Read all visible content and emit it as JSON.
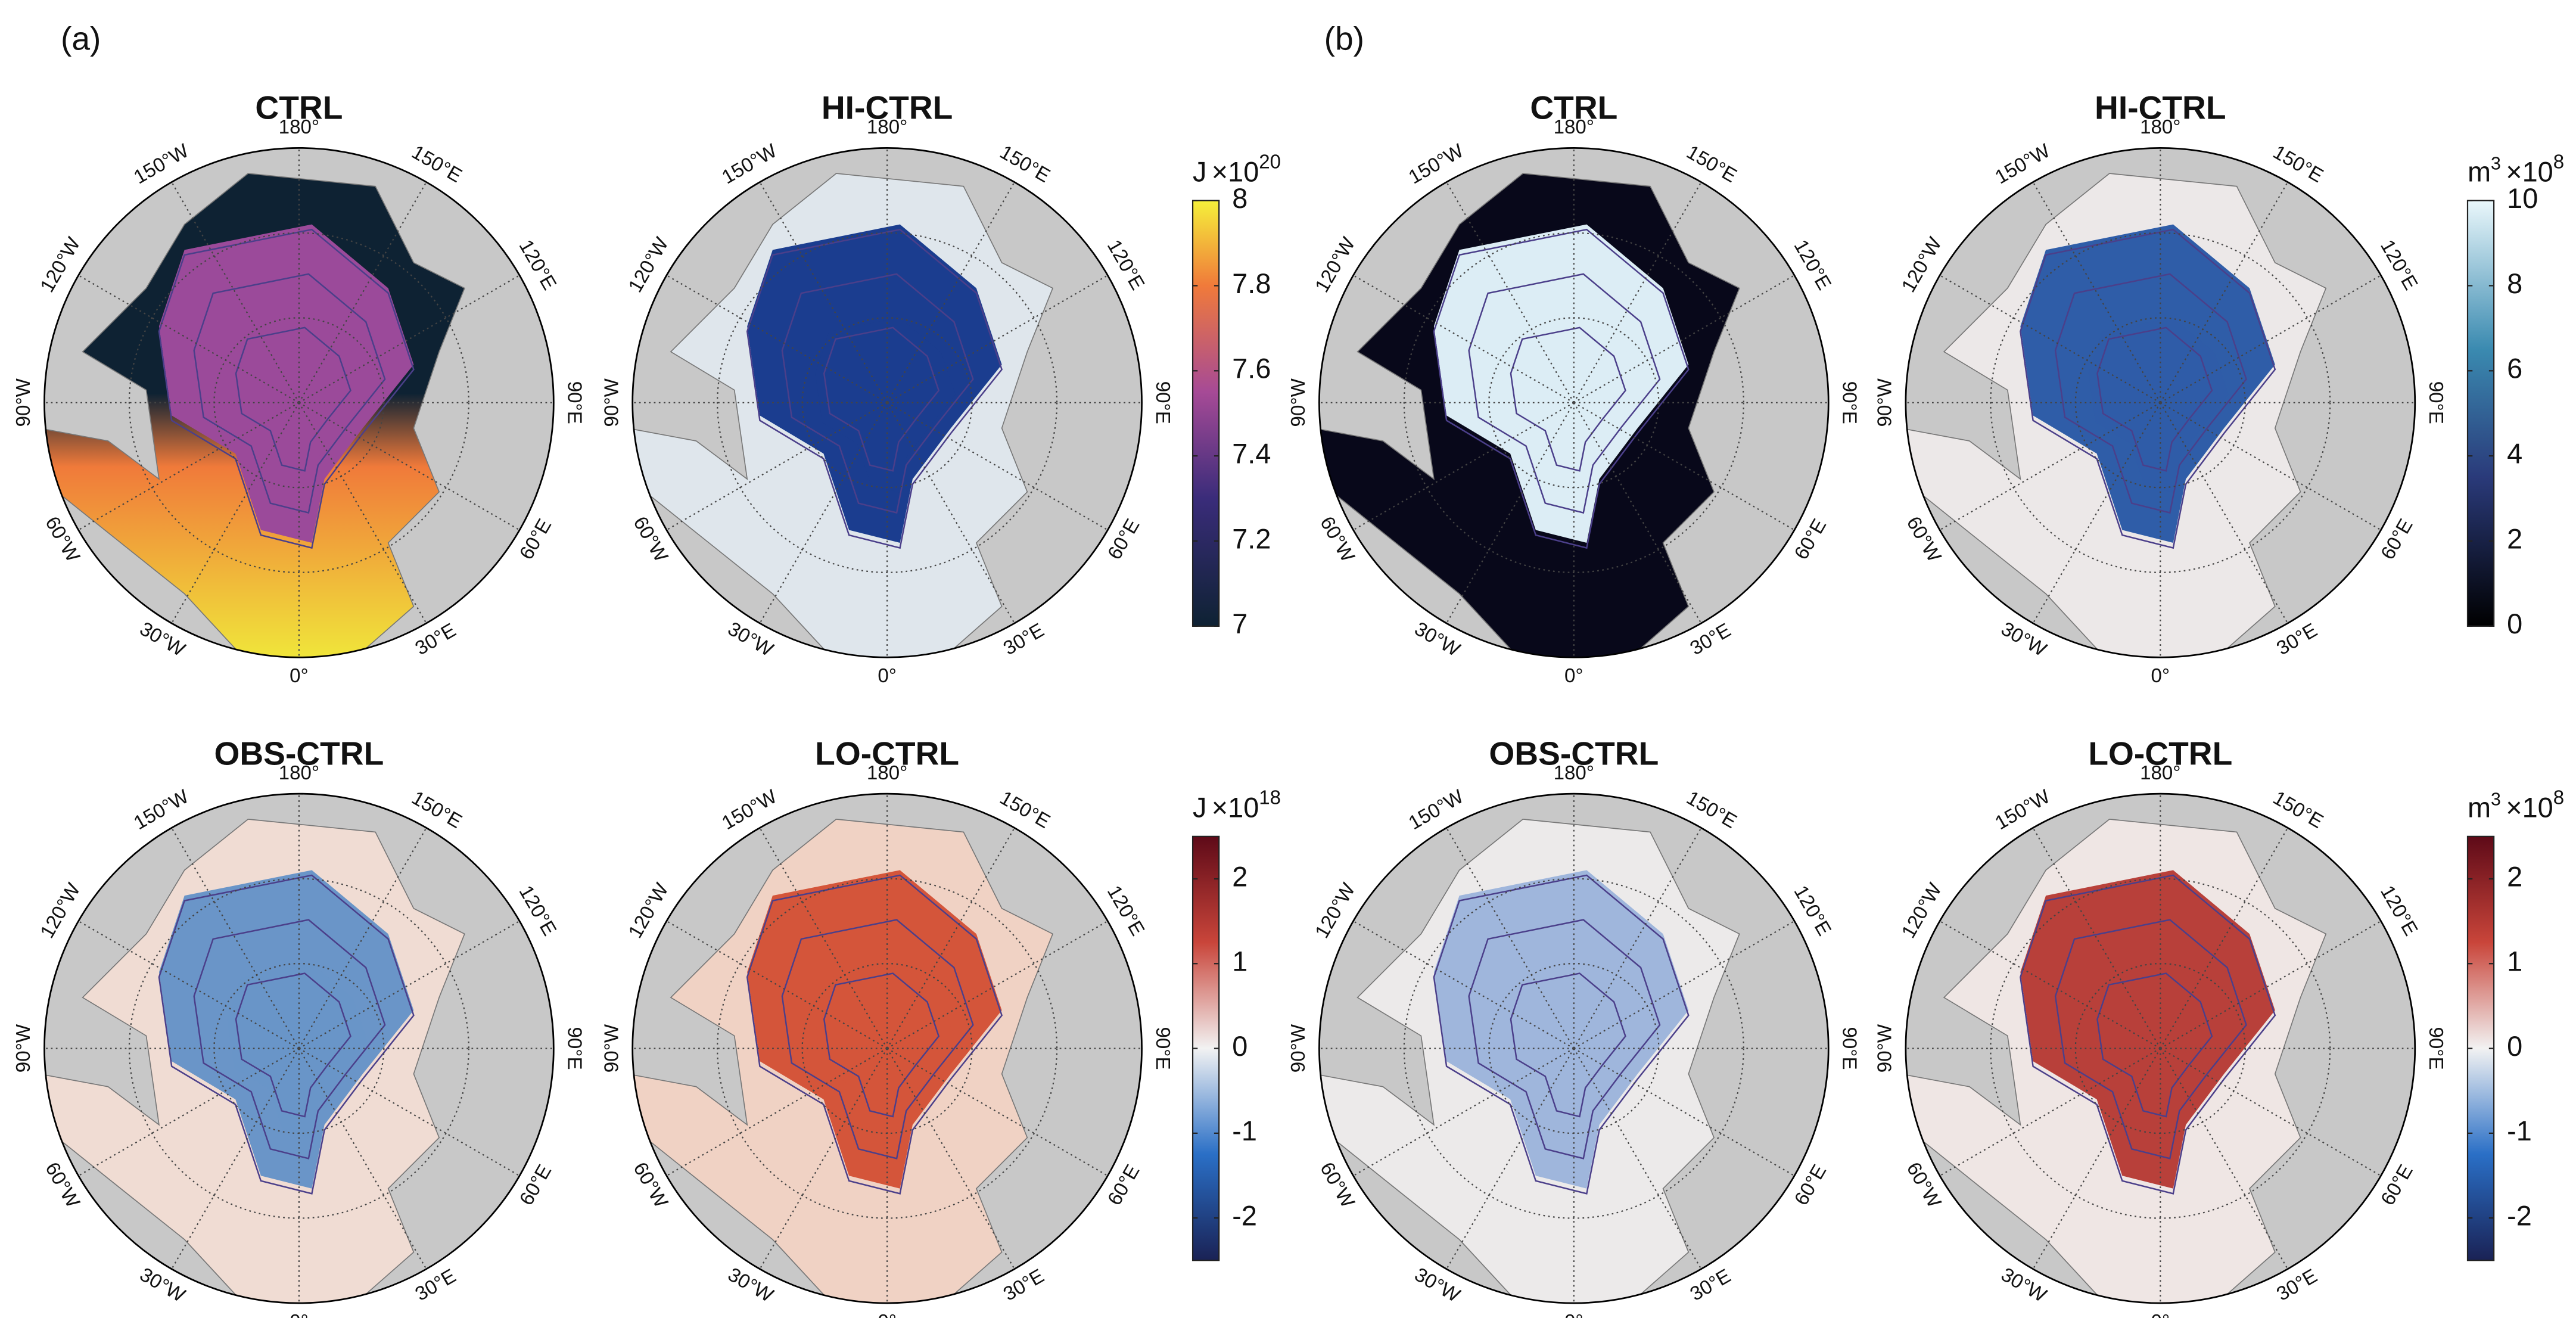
{
  "panels": [
    {
      "label": "(a)",
      "maps": [
        {
          "title": "CTRL"
        },
        {
          "title": "HI-CTRL"
        },
        {
          "title": "OBS-CTRL"
        },
        {
          "title": "LO-CTRL"
        }
      ],
      "colorbars": [
        {
          "unit": "J",
          "multiplier": "×10",
          "exponent": "20",
          "lim": [
            7,
            8
          ],
          "ticks": [
            7,
            7.2,
            7.4,
            7.6,
            7.8,
            8
          ]
        },
        {
          "unit": "J",
          "multiplier": "×10",
          "exponent": "18",
          "lim": [
            -2.5,
            2.5
          ],
          "ticks": [
            -2,
            -1,
            0,
            1,
            2
          ]
        }
      ]
    },
    {
      "label": "(b)",
      "maps": [
        {
          "title": "CTRL"
        },
        {
          "title": "HI-CTRL"
        },
        {
          "title": "OBS-CTRL"
        },
        {
          "title": "LO-CTRL"
        }
      ],
      "colorbars": [
        {
          "unit": "m",
          "unit_exponent": "3",
          "multiplier": "×10",
          "exponent": "8",
          "lim": [
            0,
            10
          ],
          "ticks": [
            0,
            2,
            4,
            6,
            8,
            10
          ]
        },
        {
          "unit": "m",
          "unit_exponent": "3",
          "multiplier": "×10",
          "exponent": "8",
          "lim": [
            -2.5,
            2.5
          ],
          "ticks": [
            -2,
            -1,
            0,
            1,
            2
          ]
        }
      ]
    }
  ],
  "longitude_labels": [
    "180°",
    "150°E",
    "120°E",
    "90°E",
    "60°E",
    "30°E",
    "0°",
    "30°W",
    "60°W",
    "90°W",
    "120°W",
    "150°W"
  ]
}
